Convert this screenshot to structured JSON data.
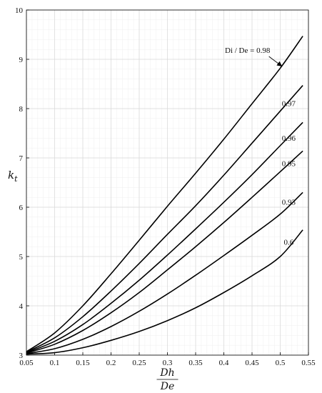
{
  "chart_data": {
    "type": "line",
    "title": "",
    "ylabel": "k_t",
    "xlabel": {
      "numerator": "Dh",
      "denominator": "De"
    },
    "xlim": [
      0.05,
      0.55
    ],
    "ylim": [
      3,
      10
    ],
    "xticks": [
      0.05,
      0.1,
      0.15,
      0.2,
      0.25,
      0.3,
      0.35,
      0.4,
      0.45,
      0.5,
      0.55
    ],
    "xtick_labels": [
      "0.05",
      "0.1",
      "0.15",
      "0.2",
      "0.25",
      "0.3",
      "0.35",
      "0.4",
      "0.45",
      "0.5",
      "0.55"
    ],
    "yticks": [
      3,
      4,
      5,
      6,
      7,
      8,
      9,
      10
    ],
    "ytick_labels": [
      "3",
      "4",
      "5",
      "6",
      "7",
      "8",
      "9",
      "10"
    ],
    "grid": true,
    "minor_grid": true,
    "line_color": "#000000",
    "grid_color": "#d9d9d9",
    "series": [
      {
        "label": "0.98",
        "x": [
          0.05,
          0.1,
          0.15,
          0.2,
          0.25,
          0.3,
          0.35,
          0.4,
          0.45,
          0.5,
          0.54
        ],
        "y": [
          3.07,
          3.45,
          4.0,
          4.65,
          5.33,
          6.02,
          6.69,
          7.38,
          8.1,
          8.82,
          9.47
        ]
      },
      {
        "label": "0.97",
        "x": [
          0.05,
          0.1,
          0.15,
          0.2,
          0.25,
          0.3,
          0.35,
          0.4,
          0.45,
          0.5,
          0.54
        ],
        "y": [
          3.06,
          3.35,
          3.78,
          4.3,
          4.86,
          5.45,
          6.03,
          6.65,
          7.3,
          7.95,
          8.47
        ]
      },
      {
        "label": "0.96",
        "x": [
          0.05,
          0.1,
          0.15,
          0.2,
          0.25,
          0.3,
          0.35,
          0.4,
          0.45,
          0.5,
          0.54
        ],
        "y": [
          3.05,
          3.28,
          3.62,
          4.05,
          4.52,
          5.03,
          5.56,
          6.1,
          6.66,
          7.25,
          7.72
        ]
      },
      {
        "label": "0.95",
        "x": [
          0.05,
          0.1,
          0.15,
          0.2,
          0.25,
          0.3,
          0.35,
          0.4,
          0.45,
          0.5,
          0.54
        ],
        "y": [
          3.04,
          3.22,
          3.5,
          3.86,
          4.27,
          4.73,
          5.2,
          5.69,
          6.2,
          6.72,
          7.14
        ]
      },
      {
        "label": "0.93",
        "x": [
          0.05,
          0.1,
          0.15,
          0.2,
          0.25,
          0.3,
          0.35,
          0.4,
          0.45,
          0.5,
          0.54
        ],
        "y": [
          3.03,
          3.13,
          3.32,
          3.58,
          3.89,
          4.24,
          4.62,
          5.02,
          5.43,
          5.86,
          6.3
        ]
      },
      {
        "label": "0.6",
        "x": [
          0.05,
          0.1,
          0.15,
          0.2,
          0.25,
          0.3,
          0.35,
          0.4,
          0.45,
          0.5,
          0.54
        ],
        "y": [
          3.02,
          3.05,
          3.15,
          3.3,
          3.48,
          3.7,
          3.96,
          4.27,
          4.61,
          5.0,
          5.54
        ]
      }
    ],
    "annotations": [
      {
        "text": "Di / De = 0.98",
        "arrow_to": {
          "x": 0.5,
          "y": 8.82
        }
      },
      {
        "text": "0.97"
      },
      {
        "text": "0.96"
      },
      {
        "text": "0.95"
      },
      {
        "text": "0.93"
      },
      {
        "text": "0.6"
      }
    ]
  }
}
